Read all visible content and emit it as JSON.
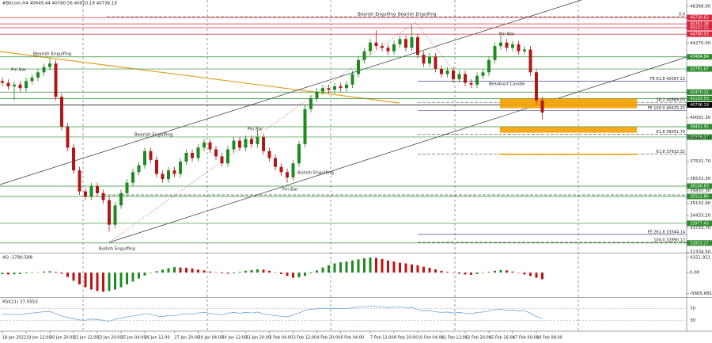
{
  "chart_data": [
    {
      "type": "candlestick",
      "title": "#Bitcoin,H4  40649.44 40780.56 40010.19 40736.19",
      "categories": [
        "18 Jan 2022",
        null,
        null,
        null,
        "19 Jan 12:00",
        null,
        null,
        null,
        "20 Jan 20:00",
        null,
        null,
        null,
        "22 Jan 12:00",
        null,
        null,
        null,
        "23 Jan 20:00",
        null,
        null,
        null,
        "25 Jan 04:00",
        null,
        null,
        null,
        "26 Jan 12:00",
        null,
        null,
        null,
        null,
        "27 Jan 20:00",
        null,
        null,
        null,
        "29 Jan 04:00",
        null,
        null,
        null,
        "30 Jan 12:00",
        null,
        null,
        null,
        "31 Jan 20:00",
        null,
        null,
        null,
        "2 Feb 04:00",
        null,
        null,
        null,
        "3 Feb 12:00",
        null,
        null,
        null,
        "4 Feb 20:00",
        null,
        null,
        null,
        "6 Feb 04:00",
        null,
        null,
        null,
        null,
        "7 Feb 12:00",
        null,
        null,
        null,
        "8 Feb 20:00",
        null,
        null,
        null,
        "10 Feb 04:00",
        null,
        null,
        null,
        "11 Feb 12:00",
        null,
        null,
        null,
        "12 Feb 20:00",
        null,
        null,
        null,
        "15 Feb 16:00",
        null,
        null,
        null,
        "17 Feb 00:00",
        null,
        null,
        null,
        "18 Feb 08:00",
        null
      ],
      "open": [
        42100,
        42000,
        41800,
        41900,
        41700,
        42100,
        42300,
        42600,
        42900,
        43100,
        41200,
        39500,
        38300,
        37000,
        35800,
        35500,
        36100,
        35700,
        35300,
        33900,
        35000,
        35700,
        36300,
        36900,
        37300,
        38100,
        37600,
        36800,
        36500,
        37000,
        36800,
        37500,
        38000,
        37700,
        38300,
        38600,
        38200,
        37800,
        37400,
        38200,
        38700,
        38300,
        38800,
        38500,
        38900,
        38100,
        37700,
        37200,
        36900,
        36600,
        37400,
        38500,
        40500,
        41100,
        41500,
        41700,
        41600,
        41800,
        41700,
        41900,
        42500,
        43300,
        43800,
        44300,
        44100,
        44000,
        43800,
        44200,
        44500,
        44000,
        44600,
        43600,
        43100,
        43500,
        42800,
        42500,
        42700,
        42200,
        42500,
        42000,
        41900,
        42400,
        42600,
        43300,
        44100,
        44300,
        44000,
        44200,
        43800,
        43900,
        42600,
        41000
      ],
      "high": [
        42300,
        42200,
        42100,
        42100,
        42300,
        42500,
        42800,
        43100,
        43400,
        43300,
        41400,
        39700,
        38500,
        37200,
        36000,
        36300,
        36300,
        35900,
        35500,
        35200,
        35900,
        36500,
        37100,
        37500,
        38300,
        38300,
        37800,
        37000,
        37200,
        37200,
        37700,
        38200,
        38200,
        38500,
        38800,
        38800,
        38400,
        38000,
        38400,
        38900,
        38900,
        39000,
        39000,
        39300,
        39100,
        38300,
        37900,
        37400,
        37100,
        37600,
        38700,
        40700,
        41300,
        41700,
        41900,
        41900,
        42000,
        42000,
        42100,
        42700,
        43500,
        44000,
        44500,
        45000,
        44300,
        44200,
        44400,
        44700,
        44700,
        45300,
        44800,
        43800,
        43700,
        43700,
        43000,
        42900,
        42900,
        42700,
        42700,
        42200,
        42600,
        42800,
        43500,
        44300,
        44800,
        44500,
        44400,
        44400,
        44100,
        44100,
        42800,
        41200
      ],
      "low": [
        41800,
        41600,
        41000,
        41500,
        41500,
        41900,
        42100,
        42400,
        42700,
        41000,
        39300,
        38100,
        36800,
        35600,
        35300,
        35300,
        35500,
        35100,
        33500,
        33700,
        34800,
        35500,
        36100,
        36700,
        37100,
        37400,
        36600,
        36300,
        36300,
        36600,
        36600,
        37300,
        37500,
        37500,
        38100,
        38000,
        37600,
        37200,
        37200,
        38000,
        38100,
        38100,
        38300,
        38300,
        37900,
        37500,
        37000,
        36700,
        36300,
        36400,
        37200,
        38300,
        40300,
        40900,
        41300,
        41400,
        41400,
        41500,
        41500,
        41700,
        42300,
        43100,
        43600,
        43900,
        43800,
        43600,
        43600,
        44000,
        43800,
        43800,
        43400,
        42900,
        42900,
        42600,
        42300,
        42300,
        42000,
        42000,
        41800,
        41700,
        41700,
        42200,
        42400,
        43100,
        43900,
        43800,
        43800,
        43600,
        43600,
        42400,
        40800,
        39900
      ],
      "close": [
        42000,
        41800,
        41900,
        41700,
        42100,
        42300,
        42600,
        42900,
        43100,
        41200,
        39500,
        38300,
        37000,
        35800,
        35500,
        36100,
        35700,
        35300,
        33900,
        35000,
        35700,
        36300,
        36900,
        37300,
        38100,
        37600,
        36800,
        36500,
        37000,
        36800,
        37500,
        38000,
        37700,
        38300,
        38600,
        38200,
        37800,
        37400,
        38200,
        38700,
        38300,
        38800,
        38500,
        38900,
        38100,
        37700,
        37200,
        36900,
        36600,
        37400,
        38500,
        40500,
        41100,
        41500,
        41700,
        41600,
        41800,
        41700,
        41900,
        42500,
        43300,
        43800,
        44300,
        44100,
        44000,
        43800,
        44200,
        44500,
        44000,
        44600,
        43600,
        43100,
        43500,
        42800,
        42500,
        42700,
        42200,
        42500,
        42000,
        41900,
        42400,
        42600,
        43300,
        44100,
        44300,
        44000,
        44200,
        43800,
        43900,
        42600,
        41000,
        40300
      ],
      "up_color": "#1f8a1f",
      "down_color": "#b01818",
      "ylim": [
        32300,
        46730
      ],
      "yticks": [
        {
          "value": 46368.9,
          "label": "46368.90"
        },
        {
          "value": 44270,
          "label": "44270.00"
        },
        {
          "value": 40001.3,
          "label": "40001.30"
        },
        {
          "value": 38862.3,
          "label": "38862.30"
        },
        {
          "value": 37531.7,
          "label": "37531.70"
        },
        {
          "value": 36532.3,
          "label": "36532.30"
        },
        {
          "value": 35832.3,
          "label": "35832.30"
        },
        {
          "value": 35132.9,
          "label": "35132.90"
        },
        {
          "value": 34433.2,
          "label": "34433.20"
        },
        {
          "value": 33733.7,
          "label": "33733.70"
        },
        {
          "value": 32334.5,
          "label": "32334.50"
        }
      ],
      "levels": [
        {
          "value": 45730.62,
          "color": "#d9263a"
        },
        {
          "value": 45367.38,
          "color": "#d9263a"
        },
        {
          "value": 45147.21,
          "color": "#d9263a"
        },
        {
          "value": 44780.03,
          "color": "#d9263a"
        },
        {
          "value": 43484.84,
          "color": "#2e8b2e"
        },
        {
          "value": 42791.67,
          "color": "#2e8b2e"
        },
        {
          "value": 41470.11,
          "color": "#2e8b2e"
        },
        {
          "value": 41103.53,
          "color": "#2e8b2e"
        },
        {
          "value": 40736.19,
          "color": "#000000"
        },
        {
          "value": 39491.95,
          "color": "#2e8b2e"
        },
        {
          "value": 38906.17,
          "color": "#2e8b2e"
        },
        {
          "value": 36100.83,
          "color": "#2e8b2e"
        },
        {
          "value": 35512.86,
          "color": "#2e8b2e"
        },
        {
          "value": 33977.43,
          "color": "#2e8b2e"
        },
        {
          "value": 32853.27,
          "color": "#2e8b2e"
        }
      ],
      "fib_lines": [
        {
          "label": "0.0",
          "value": 45780,
          "style": "dashed"
        },
        {
          "label": "FE 61.8 42097.22",
          "value": 42097.22,
          "style": "solid"
        },
        {
          "label": "38.2 40889.03",
          "value": 40889.03,
          "style": "dashed"
        },
        {
          "label": "FE 100.0 40425.25",
          "value": 40425.25,
          "style": "solid"
        },
        {
          "label": "61.8 39051.70",
          "value": 39051.7,
          "style": "dashed"
        },
        {
          "label": "61.8 37932.32",
          "value": 37932.32,
          "style": "dashed"
        },
        {
          "label": "FE 261.8 33344.14",
          "value": 33344.14,
          "style": "solid"
        },
        {
          "label": "100.0 32890.12",
          "value": 32890.12,
          "style": "dashed"
        },
        {
          "value": 35600,
          "style": "dashed"
        }
      ],
      "zones": [
        {
          "from": 40550,
          "to": 41100
        },
        {
          "from": 39150,
          "to": 39480
        },
        {
          "from": 37880,
          "to": 37960
        }
      ],
      "zone_color": "#f5a000",
      "annotations": [
        "Pin Bar",
        "Bearish Engulfing",
        "Bearish Engulfing",
        "Pin Bar",
        "Bullish Engulfing",
        "Pin Bar",
        "Bullish Engulfing",
        "Bearish Engulfing",
        "Bearish Engulfing",
        "Pin Bar",
        "Breakout Candle"
      ]
    },
    {
      "type": "bar",
      "title": "AO -1790.588",
      "values": [
        -400,
        -500,
        -450,
        -350,
        -200,
        -100,
        100,
        300,
        400,
        200,
        -300,
        -1200,
        -2200,
        -3200,
        -4000,
        -4600,
        -5000,
        -5200,
        -5000,
        -4600,
        -4000,
        -3200,
        -2400,
        -1600,
        -800,
        -100,
        400,
        800,
        1200,
        1500,
        1400,
        1300,
        1100,
        800,
        600,
        300,
        100,
        -200,
        -300,
        -200,
        200,
        500,
        700,
        900,
        800,
        500,
        100,
        -400,
        -900,
        -1400,
        -1300,
        -900,
        -200,
        600,
        1400,
        2000,
        2500,
        2800,
        3000,
        3300,
        3600,
        3900,
        4100,
        4000,
        3700,
        3300,
        3000,
        2700,
        2500,
        2200,
        2000,
        1600,
        1300,
        900,
        500,
        200,
        -100,
        -300,
        -500,
        -600,
        -400,
        -100,
        200,
        500,
        700,
        600,
        300,
        -100,
        -500,
        -900,
        -1400,
        -1790.588
      ],
      "up_color": "#1f8a1f",
      "down_color": "#c01010",
      "ylim": [
        -6000,
        5200
      ],
      "yticks": [
        4151.921,
        {
          "value": 0,
          "label": "0.00"
        },
        -5665.881
      ]
    },
    {
      "type": "line",
      "title": "RSI(21) 37.0553",
      "values": [
        52,
        50,
        51,
        49,
        53,
        55,
        57,
        59,
        60,
        52,
        45,
        40,
        36,
        32,
        31,
        35,
        33,
        31,
        27,
        34,
        38,
        42,
        45,
        48,
        53,
        50,
        45,
        43,
        47,
        45,
        50,
        53,
        51,
        55,
        57,
        54,
        51,
        48,
        54,
        57,
        54,
        57,
        55,
        58,
        52,
        49,
        46,
        44,
        42,
        48,
        55,
        64,
        67,
        69,
        70,
        69,
        70,
        69,
        70,
        72,
        75,
        76,
        78,
        76,
        75,
        73,
        75,
        76,
        73,
        74,
        66,
        62,
        64,
        59,
        57,
        58,
        55,
        57,
        54,
        53,
        57,
        58,
        62,
        66,
        67,
        64,
        65,
        62,
        63,
        54,
        43,
        37.0553
      ],
      "color": "#6fa8dc",
      "ylim": [
        0,
        100
      ],
      "yticks": [
        70,
        30
      ]
    }
  ]
}
